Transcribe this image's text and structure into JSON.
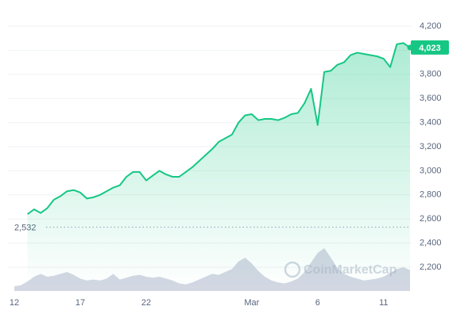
{
  "chart_data": {
    "type": "line",
    "categories": [
      "12",
      null,
      null,
      null,
      null,
      null,
      null,
      null,
      null,
      null,
      "17",
      null,
      null,
      null,
      null,
      null,
      null,
      null,
      null,
      null,
      "22",
      null,
      null,
      null,
      null,
      null,
      null,
      null,
      null,
      null,
      null,
      null,
      null,
      null,
      null,
      null,
      "Mar",
      null,
      null,
      null,
      null,
      null,
      null,
      null,
      null,
      null,
      "6",
      null,
      null,
      null,
      null,
      null,
      null,
      null,
      null,
      null,
      "11",
      null,
      null,
      null,
      null
    ],
    "series": [
      {
        "color": "#16c784",
        "values": [
          null,
          null,
          2640,
          2680,
          2650,
          2690,
          2760,
          2790,
          2830,
          2840,
          2820,
          2770,
          2780,
          2800,
          2830,
          2860,
          2880,
          2950,
          2990,
          2990,
          2920,
          2960,
          3000,
          2970,
          2950,
          2950,
          2990,
          3030,
          3080,
          3130,
          3180,
          3240,
          3270,
          3300,
          3400,
          3460,
          3470,
          3420,
          3430,
          3430,
          3420,
          3440,
          3470,
          3480,
          3560,
          3680,
          3380,
          3820,
          3830,
          3880,
          3900,
          3960,
          3980,
          3970,
          3960,
          3950,
          3930,
          3860,
          4050,
          4060,
          4023
        ],
        "value_labels": [
          null,
          null,
          null,
          null,
          null,
          null,
          null,
          null,
          null,
          null,
          null,
          null,
          null,
          null,
          null,
          null,
          null,
          null,
          null,
          null,
          null,
          null,
          null,
          null,
          null,
          null,
          null,
          null,
          null,
          null,
          null,
          null,
          null,
          null,
          null,
          null,
          null,
          null,
          null,
          null,
          null,
          null,
          null,
          null,
          null,
          null,
          null,
          null,
          null,
          null,
          null,
          null,
          null,
          null,
          null,
          null,
          null,
          null,
          null,
          null,
          "4,023"
        ]
      }
    ],
    "volume": {
      "color": "#c4c9d9",
      "ylim": [
        0,
        100
      ],
      "values": [
        10,
        12,
        20,
        30,
        36,
        30,
        32,
        36,
        40,
        34,
        26,
        22,
        24,
        22,
        26,
        36,
        24,
        28,
        32,
        34,
        30,
        28,
        30,
        26,
        22,
        16,
        14,
        18,
        24,
        30,
        36,
        34,
        40,
        46,
        62,
        70,
        58,
        42,
        30,
        22,
        18,
        16,
        20,
        26,
        40,
        60,
        80,
        90,
        70,
        48,
        36,
        30,
        26,
        22,
        24,
        26,
        30,
        38,
        46,
        50,
        44
      ]
    },
    "reference": {
      "value": 2532,
      "label": "2,532"
    },
    "watermark": "CoinMarketCap",
    "ylim": [
      2200,
      4200
    ],
    "yticks": [
      {
        "value": 2200,
        "label": "2,200"
      },
      {
        "value": 2400,
        "label": "2,400"
      },
      {
        "value": 2600,
        "label": "2,600"
      },
      {
        "value": 2800,
        "label": "2,800"
      },
      {
        "value": 3000,
        "label": "3,000"
      },
      {
        "value": 3200,
        "label": "3,200"
      },
      {
        "value": 3400,
        "label": "3,400"
      },
      {
        "value": 3600,
        "label": "3,600"
      },
      {
        "value": 3800,
        "label": "3,800"
      },
      {
        "value": 4000,
        "label": "4,000"
      },
      {
        "value": 4200,
        "label": "4,200"
      }
    ],
    "grid": true
  }
}
